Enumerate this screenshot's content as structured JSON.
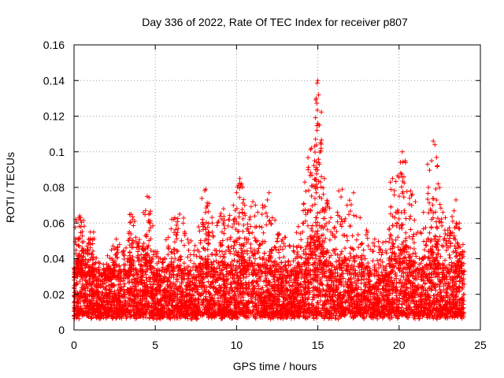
{
  "chart_data": {
    "type": "scatter",
    "title": "Day 336 of 2022, Rate Of TEC Index for receiver p807",
    "xlabel": "GPS time / hours",
    "ylabel": "ROTI / TECUs",
    "xlim": [
      0,
      25
    ],
    "ylim": [
      0,
      0.16
    ],
    "x_ticks": [
      "0",
      "5",
      "10",
      "15",
      "20",
      "25"
    ],
    "x_tick_values": [
      0,
      5,
      10,
      15,
      20,
      25
    ],
    "y_ticks": [
      "0",
      "0.02",
      "0.04",
      "0.06",
      "0.08",
      "0.1",
      "0.12",
      "0.14",
      "0.16"
    ],
    "y_tick_values": [
      0,
      0.02,
      0.04,
      0.06,
      0.08,
      0.1,
      0.12,
      0.14,
      0.16
    ],
    "grid": true,
    "marker": "+",
    "color": "#ff0000",
    "series": [
      {
        "points": [
          [
            0.1,
            0.035
          ],
          [
            0.2,
            0.03
          ],
          [
            0.3,
            0.063
          ],
          [
            0.35,
            0.064
          ],
          [
            0.4,
            0.063
          ],
          [
            0.5,
            0.046
          ],
          [
            0.6,
            0.043
          ],
          [
            0.8,
            0.047
          ],
          [
            0.9,
            0.051
          ],
          [
            1.0,
            0.055
          ],
          [
            1.2,
            0.041
          ],
          [
            1.5,
            0.038
          ],
          [
            1.8,
            0.032
          ],
          [
            2.0,
            0.037
          ],
          [
            2.3,
            0.045
          ],
          [
            2.6,
            0.051
          ],
          [
            2.8,
            0.048
          ],
          [
            3.2,
            0.046
          ],
          [
            3.4,
            0.055
          ],
          [
            3.5,
            0.065
          ],
          [
            3.8,
            0.052
          ],
          [
            4.2,
            0.047
          ],
          [
            4.4,
            0.067
          ],
          [
            4.5,
            0.075
          ],
          [
            4.6,
            0.065
          ],
          [
            5.0,
            0.044
          ],
          [
            5.3,
            0.04
          ],
          [
            5.8,
            0.052
          ],
          [
            6.2,
            0.063
          ],
          [
            6.5,
            0.065
          ],
          [
            6.8,
            0.055
          ],
          [
            7.2,
            0.05
          ],
          [
            7.6,
            0.045
          ],
          [
            7.9,
            0.062
          ],
          [
            8.1,
            0.079
          ],
          [
            8.3,
            0.071
          ],
          [
            8.5,
            0.06
          ],
          [
            8.9,
            0.061
          ],
          [
            9.2,
            0.068
          ],
          [
            9.5,
            0.062
          ],
          [
            9.8,
            0.07
          ],
          [
            10.0,
            0.077
          ],
          [
            10.2,
            0.085
          ],
          [
            10.3,
            0.082
          ],
          [
            10.5,
            0.07
          ],
          [
            10.8,
            0.062
          ],
          [
            11.0,
            0.072
          ],
          [
            11.3,
            0.066
          ],
          [
            11.6,
            0.07
          ],
          [
            12.0,
            0.077
          ],
          [
            12.2,
            0.063
          ],
          [
            12.6,
            0.054
          ],
          [
            13.0,
            0.052
          ],
          [
            13.5,
            0.047
          ],
          [
            13.8,
            0.058
          ],
          [
            14.2,
            0.083
          ],
          [
            14.4,
            0.09
          ],
          [
            14.6,
            0.102
          ],
          [
            14.8,
            0.095
          ],
          [
            14.9,
            0.13
          ],
          [
            15.0,
            0.14
          ],
          [
            15.05,
            0.132
          ],
          [
            15.1,
            0.115
          ],
          [
            15.2,
            0.102
          ],
          [
            15.4,
            0.085
          ],
          [
            15.6,
            0.072
          ],
          [
            15.8,
            0.063
          ],
          [
            16.2,
            0.066
          ],
          [
            16.5,
            0.079
          ],
          [
            16.8,
            0.07
          ],
          [
            17.2,
            0.077
          ],
          [
            17.6,
            0.063
          ],
          [
            18.0,
            0.056
          ],
          [
            18.5,
            0.051
          ],
          [
            19.0,
            0.049
          ],
          [
            19.4,
            0.057
          ],
          [
            19.6,
            0.085
          ],
          [
            19.8,
            0.066
          ],
          [
            20.1,
            0.088
          ],
          [
            20.2,
            0.1
          ],
          [
            20.4,
            0.094
          ],
          [
            20.7,
            0.078
          ],
          [
            21.0,
            0.072
          ],
          [
            21.5,
            0.066
          ],
          [
            21.8,
            0.08
          ],
          [
            22.0,
            0.095
          ],
          [
            22.1,
            0.106
          ],
          [
            22.2,
            0.104
          ],
          [
            22.4,
            0.082
          ],
          [
            22.7,
            0.066
          ],
          [
            23.0,
            0.056
          ],
          [
            23.3,
            0.061
          ],
          [
            23.5,
            0.073
          ],
          [
            23.7,
            0.06
          ],
          [
            23.9,
            0.044
          ]
        ]
      }
    ],
    "bulk_band": {
      "y_range": [
        0.003,
        0.036
      ],
      "x_range": [
        0,
        24
      ]
    }
  }
}
